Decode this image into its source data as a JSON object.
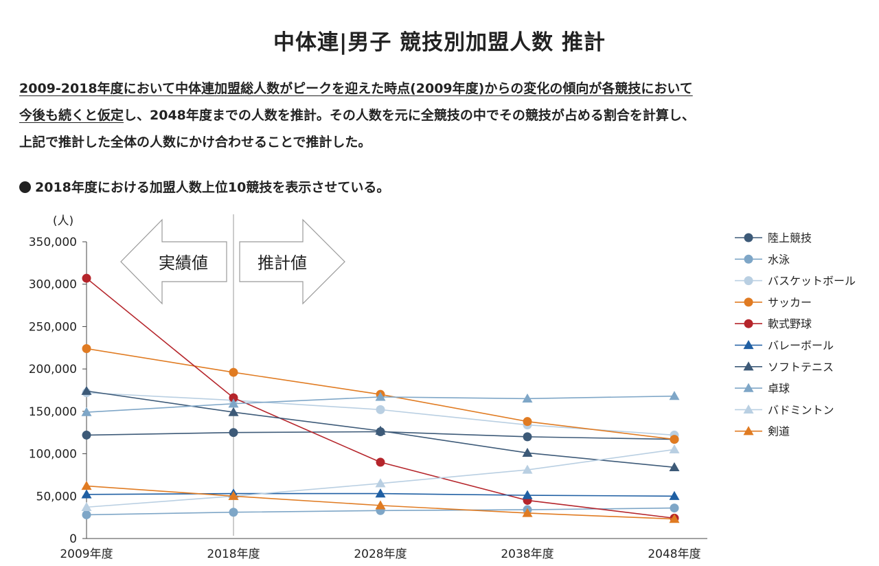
{
  "title": "中体連|男子 競技別加盟人数 推計",
  "description": {
    "line1": "2009-2018年度において中体連加盟総人数がピークを迎えた時点(2009年度)からの変化の傾向が各競技において",
    "line2_underlined": "今後も続くと仮定",
    "line2_rest": "し、2048年度までの人数を推計。その人数を元に全競技の中でその競技が占める割合を計算し、",
    "line3": "上記で推計した全体の人数にかけ合わせることで推計した。"
  },
  "note": "2018年度における加盟人数上位10競技を表示させている。",
  "chart_data": {
    "type": "line",
    "title": "中体連|男子 競技別加盟人数 推計",
    "ylabel": "(人)",
    "xlabel": "",
    "categories": [
      "2009年度",
      "2018年度",
      "2028年度",
      "2038年度",
      "2048年度"
    ],
    "ylim": [
      0,
      350000
    ],
    "yticks": [
      0,
      50000,
      100000,
      150000,
      200000,
      250000,
      300000,
      350000
    ],
    "ytick_labels": [
      "0",
      "50,000",
      "100,000",
      "150,000",
      "200,000",
      "250,000",
      "300,000",
      "350,000"
    ],
    "annotations": {
      "actual": "実績値",
      "estimate": "推計値"
    },
    "legend_position": "right",
    "series": [
      {
        "name": "陸上競技",
        "marker": "circle",
        "color": "#3d5a78",
        "values": [
          122000,
          125000,
          126000,
          120000,
          117000
        ]
      },
      {
        "name": "水泳",
        "marker": "circle",
        "color": "#7ea6c7",
        "values": [
          28000,
          31000,
          33000,
          34000,
          36000
        ]
      },
      {
        "name": "バスケットボール",
        "marker": "circle",
        "color": "#b9cfe2",
        "values": [
          172000,
          163000,
          152000,
          134000,
          122000
        ]
      },
      {
        "name": "サッカー",
        "marker": "circle",
        "color": "#e07b22",
        "values": [
          224000,
          196000,
          170000,
          138000,
          117000
        ]
      },
      {
        "name": "軟式野球",
        "marker": "circle",
        "color": "#b5252b",
        "values": [
          307000,
          166000,
          90000,
          45000,
          24000
        ]
      },
      {
        "name": "バレーボール",
        "marker": "triangle",
        "color": "#1f5fa3",
        "values": [
          52000,
          53000,
          53000,
          51000,
          50000
        ]
      },
      {
        "name": "ソフトテニス",
        "marker": "triangle",
        "color": "#3d5a78",
        "values": [
          174000,
          149000,
          127000,
          101000,
          84000
        ]
      },
      {
        "name": "卓球",
        "marker": "triangle",
        "color": "#7ea6c7",
        "values": [
          149000,
          159000,
          167000,
          165000,
          168000
        ]
      },
      {
        "name": "バドミントン",
        "marker": "triangle",
        "color": "#b9cfe2",
        "values": [
          37000,
          50000,
          65000,
          81000,
          105000
        ]
      },
      {
        "name": "剣道",
        "marker": "triangle",
        "color": "#e07b22",
        "values": [
          62000,
          50000,
          39000,
          30000,
          23000
        ]
      }
    ]
  }
}
